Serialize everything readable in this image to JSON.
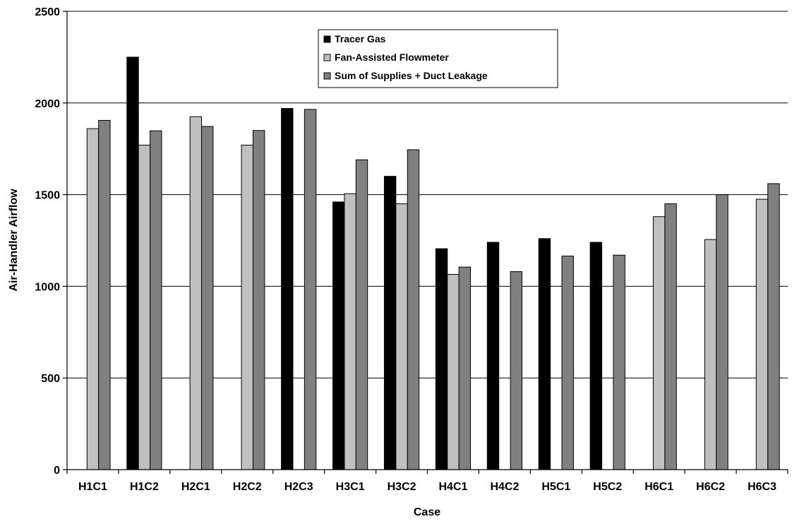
{
  "chart_data": {
    "type": "bar",
    "title": "",
    "xlabel": "Case",
    "ylabel": "Air-Handler Airflow",
    "ylim": [
      0,
      2500
    ],
    "yticks": [
      0,
      500,
      1000,
      1500,
      2000,
      2500
    ],
    "grid": true,
    "legend_position": "top-center",
    "categories": [
      "H1C1",
      "H1C2",
      "H2C1",
      "H2C2",
      "H2C3",
      "H3C1",
      "H3C2",
      "H4C1",
      "H4C2",
      "H5C1",
      "H5C2",
      "H6C1",
      "H6C2",
      "H6C3"
    ],
    "series": [
      {
        "name": "Tracer Gas",
        "color": "#000000",
        "values": [
          null,
          2250,
          null,
          null,
          1970,
          1460,
          1600,
          1205,
          1240,
          1260,
          1240,
          null,
          null,
          null
        ]
      },
      {
        "name": "Fan-Assisted Flowmeter",
        "color": "#c0c0c0",
        "values": [
          1860,
          1770,
          1925,
          1770,
          null,
          1505,
          1450,
          1065,
          null,
          null,
          null,
          1380,
          1255,
          1475
        ]
      },
      {
        "name": "Sum of Supplies + Duct Leakage",
        "color": "#808080",
        "values": [
          1905,
          1848,
          1872,
          1850,
          1965,
          1690,
          1745,
          1105,
          1080,
          1165,
          1170,
          1450,
          1500,
          1560
        ]
      }
    ]
  }
}
